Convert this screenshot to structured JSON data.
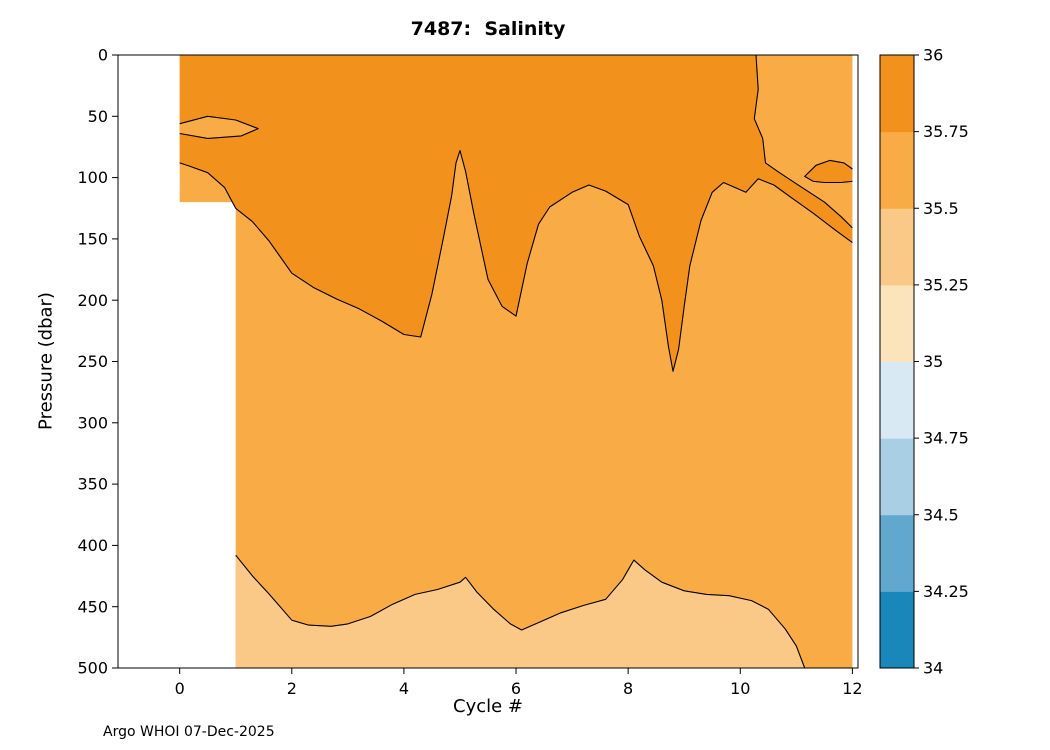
{
  "figure": {
    "title": "7487:  Salinity",
    "xlabel": "Cycle #",
    "ylabel": "Pressure (dbar)",
    "footer": "Argo WHOI 07-Dec-2025"
  },
  "chart_data": {
    "type": "heatmap",
    "subtype": "filled-contour-section",
    "title": "7487:  Salinity",
    "xlabel": "Cycle #",
    "ylabel": "Pressure (dbar)",
    "x_range": [
      -1.1,
      12.1
    ],
    "y_range": [
      0,
      500
    ],
    "y_axis_reversed_depth": true,
    "x_ticks": [
      0,
      2,
      4,
      6,
      8,
      10,
      12
    ],
    "y_ticks": [
      0,
      50,
      100,
      150,
      200,
      250,
      300,
      350,
      400,
      450,
      500
    ],
    "contour_levels": [
      34,
      34.25,
      34.5,
      34.75,
      35,
      35.25,
      35.5,
      35.75,
      36
    ],
    "colorbar": {
      "labels_top_to_bottom": [
        "36",
        "35.75",
        "35.5",
        "35.25",
        "35",
        "34.75",
        "34.5",
        "34.25",
        "34"
      ],
      "band_colors_bottom_to_top": [
        "#1987B9",
        "#61A8CE",
        "#A9CFE4",
        "#D8E9F3",
        "#FBE3BC",
        "#FAC987",
        "#F9AB45",
        "#F3911D"
      ]
    },
    "line_color": "#000000",
    "regions": [
      {
        "name": "base-field",
        "level": "35.5-35.75",
        "color": "#F9AB45",
        "polygon": [
          [
            0,
            0
          ],
          [
            12,
            0
          ],
          [
            12,
            500
          ],
          [
            1,
            500
          ],
          [
            1,
            120
          ],
          [
            0,
            120
          ]
        ],
        "lines": []
      },
      {
        "name": "upper-band",
        "level": "35.75-36",
        "color": "#F3911D",
        "polygon": [
          [
            0,
            0
          ],
          [
            10.28,
            0
          ],
          [
            10.32,
            28
          ],
          [
            10.25,
            52
          ],
          [
            10.4,
            68
          ],
          [
            10.45,
            88
          ],
          [
            10.7,
            96
          ],
          [
            11.1,
            108
          ],
          [
            11.5,
            120
          ],
          [
            11.8,
            132
          ],
          [
            12,
            141
          ],
          [
            12,
            153
          ],
          [
            11.7,
            143
          ],
          [
            11.3,
            129
          ],
          [
            10.9,
            116
          ],
          [
            10.6,
            106
          ],
          [
            10.32,
            101
          ],
          [
            10.1,
            112
          ],
          [
            9.9,
            108
          ],
          [
            9.7,
            104
          ],
          [
            9.5,
            112
          ],
          [
            9.3,
            135
          ],
          [
            9.1,
            172
          ],
          [
            9.0,
            205
          ],
          [
            8.9,
            240
          ],
          [
            8.8,
            258
          ],
          [
            8.72,
            238
          ],
          [
            8.6,
            200
          ],
          [
            8.45,
            172
          ],
          [
            8.2,
            148
          ],
          [
            8.0,
            122
          ],
          [
            7.6,
            111
          ],
          [
            7.3,
            106
          ],
          [
            7.0,
            112
          ],
          [
            6.6,
            124
          ],
          [
            6.4,
            138
          ],
          [
            6.2,
            170
          ],
          [
            6.0,
            213
          ],
          [
            5.75,
            205
          ],
          [
            5.5,
            183
          ],
          [
            5.25,
            130
          ],
          [
            5.1,
            95
          ],
          [
            5.0,
            78
          ],
          [
            4.93,
            88
          ],
          [
            4.85,
            115
          ],
          [
            4.7,
            150
          ],
          [
            4.5,
            195
          ],
          [
            4.3,
            230
          ],
          [
            4.0,
            228
          ],
          [
            3.6,
            217
          ],
          [
            3.2,
            207
          ],
          [
            2.8,
            199
          ],
          [
            2.4,
            190
          ],
          [
            2.0,
            178
          ],
          [
            1.6,
            152
          ],
          [
            1.3,
            136
          ],
          [
            1.0,
            125
          ],
          [
            0.8,
            108
          ],
          [
            0.5,
            96
          ],
          [
            0.2,
            91
          ],
          [
            0,
            88
          ]
        ],
        "lines": [
          [
            [
              10.28,
              0
            ],
            [
              10.32,
              28
            ],
            [
              10.25,
              52
            ],
            [
              10.4,
              68
            ],
            [
              10.45,
              88
            ],
            [
              10.7,
              96
            ],
            [
              11.1,
              108
            ],
            [
              11.5,
              120
            ],
            [
              11.8,
              132
            ],
            [
              12,
              141
            ]
          ],
          [
            [
              12,
              153
            ],
            [
              11.7,
              143
            ],
            [
              11.3,
              129
            ],
            [
              10.9,
              116
            ],
            [
              10.6,
              106
            ],
            [
              10.32,
              101
            ],
            [
              10.1,
              112
            ],
            [
              9.9,
              108
            ],
            [
              9.7,
              104
            ],
            [
              9.5,
              112
            ],
            [
              9.3,
              135
            ],
            [
              9.1,
              172
            ],
            [
              9.0,
              205
            ],
            [
              8.9,
              240
            ],
            [
              8.8,
              258
            ],
            [
              8.72,
              238
            ],
            [
              8.6,
              200
            ],
            [
              8.45,
              172
            ],
            [
              8.2,
              148
            ],
            [
              8.0,
              122
            ],
            [
              7.6,
              111
            ],
            [
              7.3,
              106
            ],
            [
              7.0,
              112
            ],
            [
              6.6,
              124
            ],
            [
              6.4,
              138
            ],
            [
              6.2,
              170
            ],
            [
              6.0,
              213
            ],
            [
              5.75,
              205
            ],
            [
              5.5,
              183
            ],
            [
              5.25,
              130
            ],
            [
              5.1,
              95
            ],
            [
              5.0,
              78
            ],
            [
              4.93,
              88
            ],
            [
              4.85,
              115
            ],
            [
              4.7,
              150
            ],
            [
              4.5,
              195
            ],
            [
              4.3,
              230
            ],
            [
              4.0,
              228
            ],
            [
              3.6,
              217
            ],
            [
              3.2,
              207
            ],
            [
              2.8,
              199
            ],
            [
              2.4,
              190
            ],
            [
              2.0,
              178
            ],
            [
              1.6,
              152
            ],
            [
              1.3,
              136
            ],
            [
              1.0,
              125
            ],
            [
              0.8,
              108
            ],
            [
              0.5,
              96
            ],
            [
              0.2,
              91
            ],
            [
              0,
              88
            ]
          ]
        ]
      },
      {
        "name": "left-lens-island",
        "level": "35.5-35.75",
        "color": "#F9AB45",
        "polygon": [
          [
            0,
            56
          ],
          [
            0.5,
            50
          ],
          [
            1.0,
            53
          ],
          [
            1.4,
            60
          ],
          [
            1.1,
            66
          ],
          [
            0.5,
            68
          ],
          [
            0,
            64
          ]
        ],
        "lines": [
          [
            [
              0,
              56
            ],
            [
              0.5,
              50
            ],
            [
              1.0,
              53
            ],
            [
              1.4,
              60
            ],
            [
              1.1,
              66
            ],
            [
              0.5,
              68
            ],
            [
              0,
              64
            ]
          ]
        ]
      },
      {
        "name": "right-lens",
        "level": "35.75-36",
        "color": "#F3911D",
        "polygon": [
          [
            11.15,
            99
          ],
          [
            11.35,
            90
          ],
          [
            11.6,
            86
          ],
          [
            11.85,
            88
          ],
          [
            12,
            93
          ],
          [
            12,
            103
          ],
          [
            11.8,
            104
          ],
          [
            11.5,
            104
          ],
          [
            11.3,
            103
          ]
        ],
        "lines": [
          [
            [
              12,
              93
            ],
            [
              11.85,
              88
            ],
            [
              11.6,
              86
            ],
            [
              11.35,
              90
            ],
            [
              11.15,
              99
            ],
            [
              11.3,
              103
            ],
            [
              11.5,
              104
            ],
            [
              11.8,
              104
            ],
            [
              12,
              103
            ]
          ]
        ]
      },
      {
        "name": "deep-band",
        "level": "35.25-35.5",
        "color": "#FAC987",
        "polygon": [
          [
            1,
            408
          ],
          [
            1.3,
            425
          ],
          [
            1.6,
            440
          ],
          [
            2.0,
            461
          ],
          [
            2.3,
            465
          ],
          [
            2.7,
            466
          ],
          [
            3.0,
            464
          ],
          [
            3.4,
            458
          ],
          [
            3.8,
            448
          ],
          [
            4.2,
            440
          ],
          [
            4.6,
            436
          ],
          [
            5.0,
            430
          ],
          [
            5.1,
            426
          ],
          [
            5.3,
            438
          ],
          [
            5.6,
            452
          ],
          [
            5.9,
            464
          ],
          [
            6.1,
            469
          ],
          [
            6.4,
            463
          ],
          [
            6.8,
            455
          ],
          [
            7.2,
            449
          ],
          [
            7.6,
            444
          ],
          [
            7.9,
            428
          ],
          [
            8.1,
            412
          ],
          [
            8.3,
            420
          ],
          [
            8.6,
            430
          ],
          [
            9.0,
            437
          ],
          [
            9.4,
            440
          ],
          [
            9.8,
            441
          ],
          [
            10.2,
            445
          ],
          [
            10.5,
            452
          ],
          [
            10.8,
            468
          ],
          [
            11.0,
            482
          ],
          [
            11.15,
            500
          ],
          [
            1,
            500
          ]
        ],
        "lines": [
          [
            [
              1,
              408
            ],
            [
              1.3,
              425
            ],
            [
              1.6,
              440
            ],
            [
              2.0,
              461
            ],
            [
              2.3,
              465
            ],
            [
              2.7,
              466
            ],
            [
              3.0,
              464
            ],
            [
              3.4,
              458
            ],
            [
              3.8,
              448
            ],
            [
              4.2,
              440
            ],
            [
              4.6,
              436
            ],
            [
              5.0,
              430
            ],
            [
              5.1,
              426
            ],
            [
              5.3,
              438
            ],
            [
              5.6,
              452
            ],
            [
              5.9,
              464
            ],
            [
              6.1,
              469
            ],
            [
              6.4,
              463
            ],
            [
              6.8,
              455
            ],
            [
              7.2,
              449
            ],
            [
              7.6,
              444
            ],
            [
              7.9,
              428
            ],
            [
              8.1,
              412
            ],
            [
              8.3,
              420
            ],
            [
              8.6,
              430
            ],
            [
              9.0,
              437
            ],
            [
              9.4,
              440
            ],
            [
              9.8,
              441
            ],
            [
              10.2,
              445
            ],
            [
              10.5,
              452
            ],
            [
              10.8,
              468
            ],
            [
              11.0,
              482
            ],
            [
              11.15,
              500
            ]
          ]
        ]
      }
    ]
  }
}
